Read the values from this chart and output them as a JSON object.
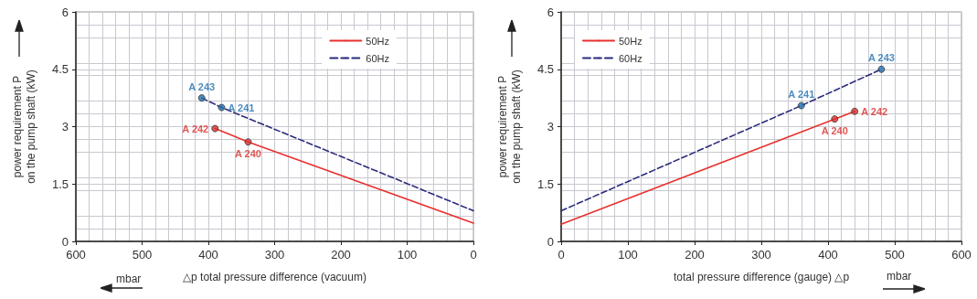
{
  "chart_data": [
    {
      "type": "line",
      "ylabel": "power requirement P\non the pump shaft (kW)",
      "xlabel": "△p total pressure difference (vacuum)",
      "annotations": [
        "mbar"
      ],
      "xlim": [
        600,
        0
      ],
      "xticks": [
        600,
        500,
        400,
        300,
        200,
        100,
        0
      ],
      "ylim": [
        0,
        6
      ],
      "yticks": [
        0,
        1.5,
        3,
        4.5,
        6
      ],
      "grid": true,
      "legend": "top right",
      "marker": "none",
      "series": [
        {
          "name": "50Hz",
          "color": "#e8312f",
          "line_style": "solid",
          "x": [
            390,
            340,
            0
          ],
          "values": [
            2.95,
            2.6,
            0.48
          ]
        },
        {
          "name": "60Hz",
          "color": "#2b2c7c",
          "line_style": "dashed",
          "x": [
            410,
            380,
            0
          ],
          "values": [
            3.75,
            3.5,
            0.8
          ]
        },
        {
          "type": "scatter",
          "marker": "circle",
          "color": "#d9302c",
          "x": [
            390,
            340
          ],
          "values": [
            2.95,
            2.6
          ],
          "value_labels": [
            "A 242",
            "A 240"
          ]
        },
        {
          "type": "scatter",
          "marker": "circle",
          "color": "#1f6fb0",
          "x": [
            410,
            380
          ],
          "values": [
            3.75,
            3.5
          ],
          "value_labels": [
            "A 243",
            "A 241"
          ]
        }
      ]
    },
    {
      "type": "line",
      "ylabel": "power requirement P\non the pump shaft (kW)",
      "xlabel": "total pressure difference (gauge) △p",
      "annotations": [
        "mbar"
      ],
      "xlim": [
        0,
        600
      ],
      "xticks": [
        0,
        100,
        200,
        300,
        400,
        500,
        600
      ],
      "ylim": [
        0,
        6
      ],
      "yticks": [
        0,
        1.5,
        3,
        4.5,
        6
      ],
      "grid": true,
      "legend": "top left",
      "marker": "none",
      "series": [
        {
          "name": "50Hz",
          "color": "#e8312f",
          "line_style": "solid",
          "x": [
            0,
            410,
            440
          ],
          "values": [
            0.45,
            3.2,
            3.4
          ]
        },
        {
          "name": "60Hz",
          "color": "#2b2c7c",
          "line_style": "dashed",
          "x": [
            0,
            360,
            480
          ],
          "values": [
            0.8,
            3.55,
            4.5
          ]
        },
        {
          "type": "scatter",
          "marker": "circle",
          "color": "#d9302c",
          "x": [
            410,
            440
          ],
          "values": [
            3.2,
            3.4
          ],
          "value_labels": [
            "A 240",
            "A 242"
          ]
        },
        {
          "type": "scatter",
          "marker": "circle",
          "color": "#1f6fb0",
          "x": [
            360,
            480
          ],
          "values": [
            3.55,
            4.5
          ],
          "value_labels": [
            "A 241",
            "A 243"
          ]
        }
      ]
    }
  ]
}
